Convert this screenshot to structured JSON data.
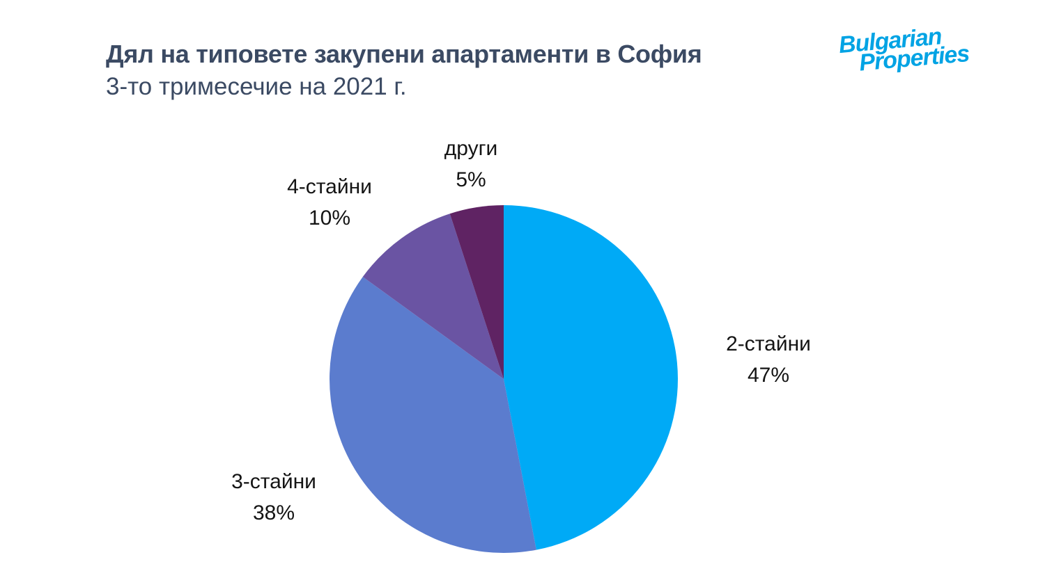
{
  "page": {
    "background": "#ffffff",
    "label_color": "#141414"
  },
  "header": {
    "title": "Дял на типовете закупени апартаменти в София",
    "subtitle": "3-то тримесечие на 2021 г.",
    "title_color": "#3B4A63"
  },
  "logo": {
    "name": "Bulgarian Properties",
    "line1": "Bulgarian",
    "line2": "Properties",
    "color": "#00A3E4"
  },
  "chart_data": {
    "type": "pie",
    "title": "Дял на типовете закупени апартаменти в София",
    "subtitle": "3-то тримесечие на 2021 г.",
    "start_angle_deg": 0,
    "direction": "clockwise",
    "legend_position": "none",
    "labels_position": "outside",
    "slices": [
      {
        "id": "2-stayni",
        "label": "2-стайни",
        "value": 47,
        "pct_label": "47%",
        "color": "#00AAF6"
      },
      {
        "id": "3-stayni",
        "label": "3-стайни",
        "value": 38,
        "pct_label": "38%",
        "color": "#5B7CCE"
      },
      {
        "id": "4-stayni",
        "label": "4-стайни",
        "value": 10,
        "pct_label": "10%",
        "color": "#6A54A3"
      },
      {
        "id": "drugi",
        "label": "други",
        "value": 5,
        "pct_label": "5%",
        "color": "#5F2363"
      }
    ]
  }
}
